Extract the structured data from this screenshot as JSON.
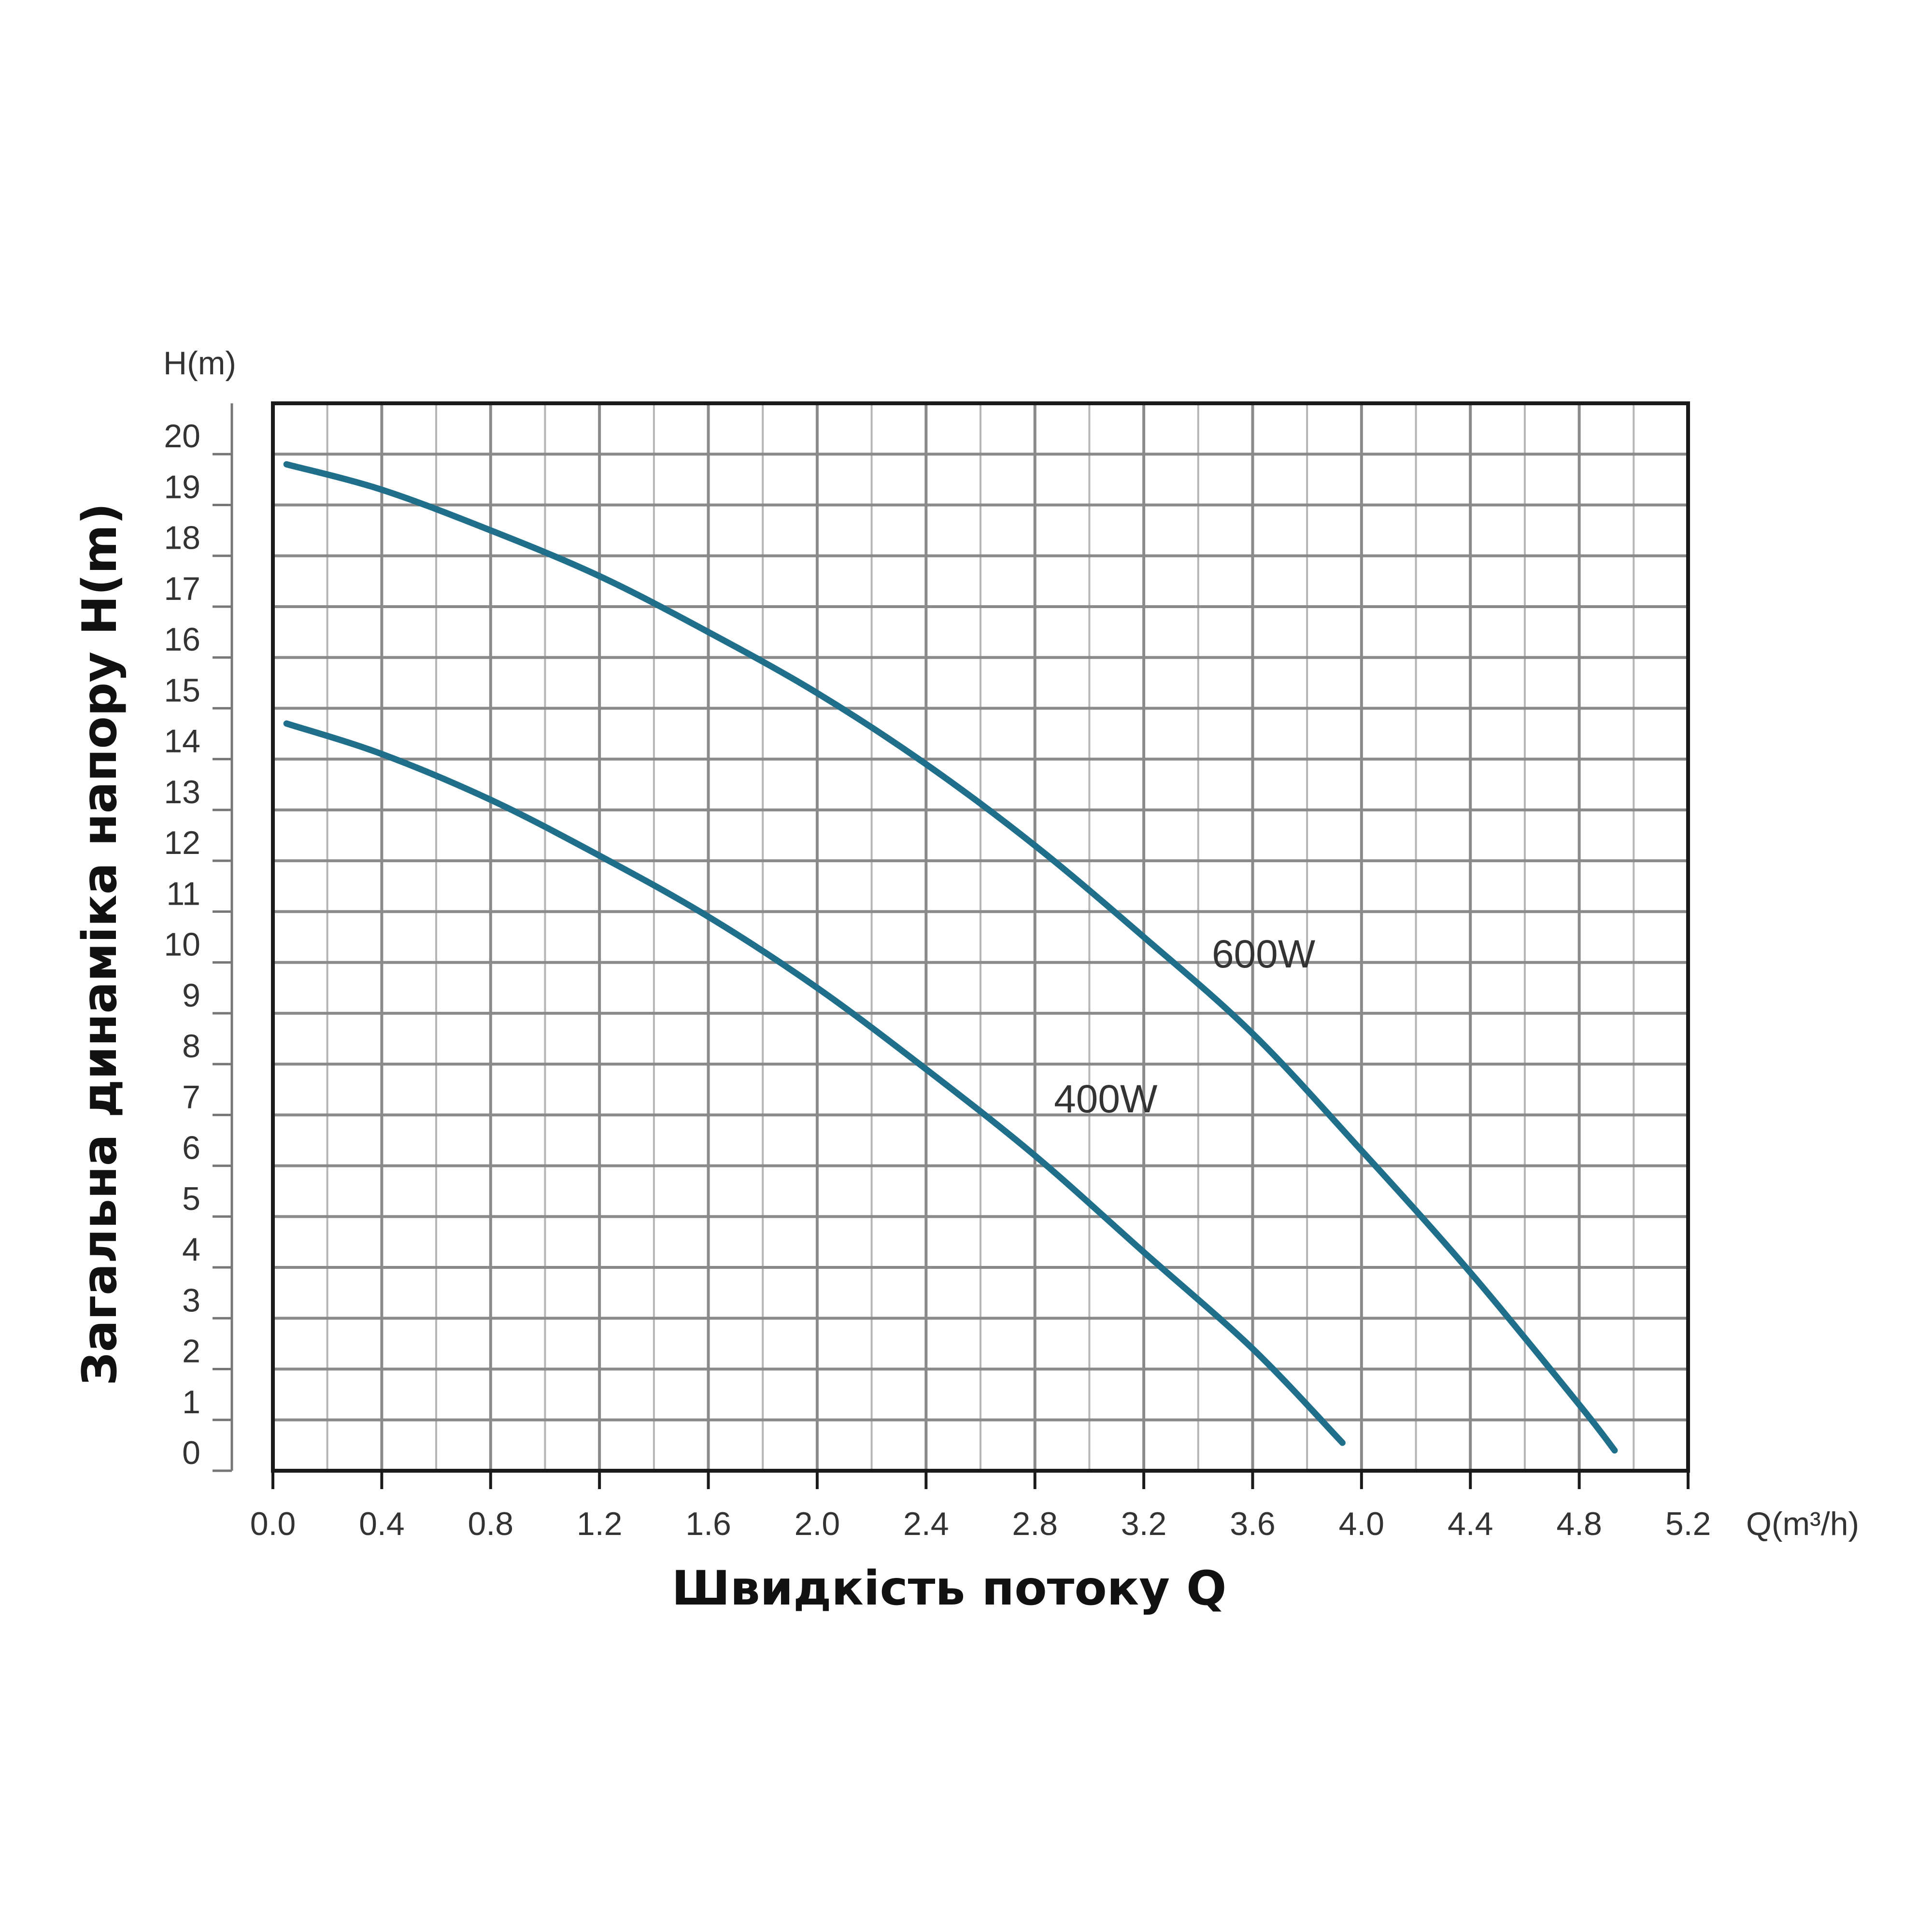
{
  "chart_data": {
    "type": "line",
    "title": "",
    "xlabel": "Швидкість потоку Q",
    "ylabel": "Загальна динаміка напору H(m)",
    "x_unit": "Q(m³/h)",
    "y_unit": "H(m)",
    "xlim": [
      0,
      5.2
    ],
    "ylim": [
      0,
      21
    ],
    "grid": true,
    "legend": "none",
    "x_ticks": [
      "0.0",
      "0.4",
      "0.8",
      "1.2",
      "1.6",
      "2.0",
      "2.4",
      "2.8",
      "3.2",
      "3.6",
      "4.0",
      "4.4",
      "4.8",
      "5.2"
    ],
    "y_ticks": [
      "0",
      "1",
      "2",
      "3",
      "4",
      "5",
      "6",
      "7",
      "8",
      "9",
      "10",
      "11",
      "12",
      "13",
      "14",
      "15",
      "16",
      "17",
      "18",
      "19",
      "20"
    ],
    "series": [
      {
        "name": "600W",
        "color": "#1f6f8b",
        "x": [
          0.05,
          0.4,
          0.8,
          1.2,
          1.6,
          2.0,
          2.4,
          2.8,
          3.2,
          3.6,
          4.0,
          4.4,
          4.8,
          4.93
        ],
        "y": [
          19.8,
          19.3,
          18.5,
          17.6,
          16.5,
          15.3,
          13.9,
          12.3,
          10.5,
          8.6,
          6.3,
          3.9,
          1.3,
          0.4
        ]
      },
      {
        "name": "400W",
        "color": "#1f6f8b",
        "x": [
          0.05,
          0.4,
          0.8,
          1.2,
          1.6,
          2.0,
          2.4,
          2.8,
          3.2,
          3.6,
          3.93
        ],
        "y": [
          14.7,
          14.1,
          13.2,
          12.1,
          10.9,
          9.5,
          7.9,
          6.2,
          4.3,
          2.4,
          0.55
        ]
      }
    ]
  }
}
